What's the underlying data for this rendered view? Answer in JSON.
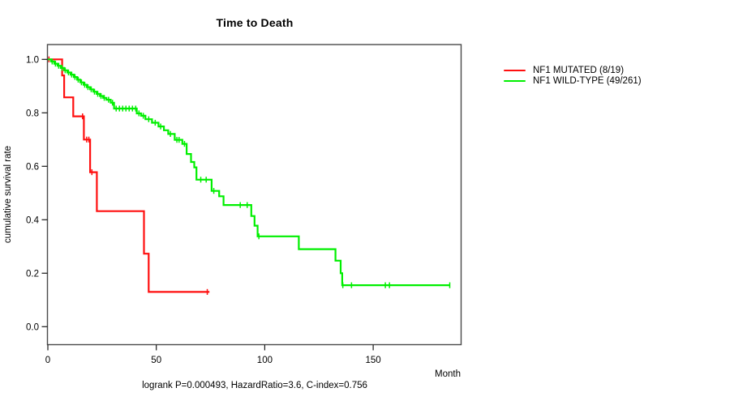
{
  "figure": {
    "title": "Time to Death",
    "xlabel": "Month",
    "ylabel": "cumulative survival rate",
    "footnote": "logrank P=0.000493, HazardRatio=3.6, C-index=0.756"
  },
  "legend": {
    "entries": [
      {
        "label": "NF1 MUTATED (8/19)",
        "color": "#ff0f0f"
      },
      {
        "label": "NF1 WILD-TYPE (49/261)",
        "color": "#00ef00"
      }
    ]
  },
  "chart_data": {
    "type": "line",
    "subtype": "kaplan-meier-step",
    "title": "Time to Death",
    "xlabel": "Month",
    "ylabel": "cumulative survival rate",
    "xlim": [
      0,
      190
    ],
    "ylim": [
      0.0,
      1.0
    ],
    "xticks": [
      0,
      50,
      100,
      150
    ],
    "yticks": [
      1.0,
      0.8,
      0.6,
      0.4,
      0.2,
      0.0
    ],
    "grid": false,
    "legend_position": "right-outside",
    "series": [
      {
        "name": "NF1 MUTATED (8/19)",
        "color": "#ff0f0f",
        "steps": [
          [
            0,
            1.0
          ],
          [
            6.6,
            0.94
          ],
          [
            7.5,
            0.858
          ],
          [
            11.7,
            0.787
          ],
          [
            16.6,
            0.7
          ],
          [
            19.5,
            0.578
          ],
          [
            22.6,
            0.432
          ],
          [
            44.3,
            0.273
          ],
          [
            46.5,
            0.13
          ],
          [
            74.5,
            0.13
          ]
        ],
        "censors": [
          [
            0.5,
            1.0
          ],
          [
            16.0,
            0.787
          ],
          [
            17.9,
            0.7
          ],
          [
            18.9,
            0.7
          ],
          [
            20.3,
            0.578
          ],
          [
            73.5,
            0.13
          ]
        ]
      },
      {
        "name": "NF1 WILD-TYPE (49/261)",
        "color": "#00ef00",
        "steps": [
          [
            0,
            1.0
          ],
          [
            1.5,
            0.992
          ],
          [
            3,
            0.984
          ],
          [
            4.5,
            0.976
          ],
          [
            6,
            0.968
          ],
          [
            7.5,
            0.959
          ],
          [
            9,
            0.951
          ],
          [
            10.5,
            0.943
          ],
          [
            12,
            0.934
          ],
          [
            13.5,
            0.924
          ],
          [
            15,
            0.914
          ],
          [
            16.5,
            0.905
          ],
          [
            18,
            0.896
          ],
          [
            19.5,
            0.888
          ],
          [
            21,
            0.879
          ],
          [
            22.5,
            0.871
          ],
          [
            24,
            0.863
          ],
          [
            25.5,
            0.856
          ],
          [
            27,
            0.849
          ],
          [
            29,
            0.838
          ],
          [
            30.5,
            0.816
          ],
          [
            41,
            0.798
          ],
          [
            43,
            0.789
          ],
          [
            45,
            0.776
          ],
          [
            48,
            0.763
          ],
          [
            51,
            0.749
          ],
          [
            53.5,
            0.735
          ],
          [
            55.5,
            0.721
          ],
          [
            58.5,
            0.699
          ],
          [
            62,
            0.684
          ],
          [
            64,
            0.646
          ],
          [
            66,
            0.616
          ],
          [
            67.5,
            0.596
          ],
          [
            68.5,
            0.55
          ],
          [
            75.5,
            0.508
          ],
          [
            79,
            0.488
          ],
          [
            81,
            0.455
          ],
          [
            93.8,
            0.414
          ],
          [
            95.3,
            0.378
          ],
          [
            96.7,
            0.338
          ],
          [
            115.7,
            0.29
          ],
          [
            132.6,
            0.247
          ],
          [
            135,
            0.2
          ],
          [
            135.7,
            0.155
          ],
          [
            185.3,
            0.155
          ]
        ],
        "censors": [
          [
            2,
            0.992
          ],
          [
            3.5,
            0.984
          ],
          [
            5,
            0.976
          ],
          [
            6.5,
            0.968
          ],
          [
            8,
            0.959
          ],
          [
            9.5,
            0.951
          ],
          [
            11,
            0.943
          ],
          [
            12.5,
            0.934
          ],
          [
            14,
            0.924
          ],
          [
            15.5,
            0.914
          ],
          [
            17,
            0.905
          ],
          [
            18.5,
            0.896
          ],
          [
            20,
            0.888
          ],
          [
            21.5,
            0.879
          ],
          [
            23,
            0.871
          ],
          [
            24.5,
            0.863
          ],
          [
            26,
            0.856
          ],
          [
            28,
            0.849
          ],
          [
            29.8,
            0.838
          ],
          [
            31.5,
            0.816
          ],
          [
            33,
            0.816
          ],
          [
            34.5,
            0.816
          ],
          [
            36,
            0.816
          ],
          [
            37.5,
            0.816
          ],
          [
            39,
            0.816
          ],
          [
            40.5,
            0.816
          ],
          [
            42,
            0.798
          ],
          [
            44,
            0.789
          ],
          [
            46.5,
            0.776
          ],
          [
            49.5,
            0.763
          ],
          [
            52,
            0.749
          ],
          [
            56.5,
            0.721
          ],
          [
            59.5,
            0.699
          ],
          [
            60.5,
            0.699
          ],
          [
            63,
            0.684
          ],
          [
            70.5,
            0.55
          ],
          [
            73,
            0.55
          ],
          [
            76.5,
            0.508
          ],
          [
            88.7,
            0.455
          ],
          [
            91.9,
            0.455
          ],
          [
            97.3,
            0.338
          ],
          [
            136,
            0.155
          ],
          [
            140,
            0.155
          ],
          [
            155.6,
            0.155
          ],
          [
            157.5,
            0.155
          ],
          [
            185.3,
            0.155
          ]
        ]
      }
    ]
  }
}
